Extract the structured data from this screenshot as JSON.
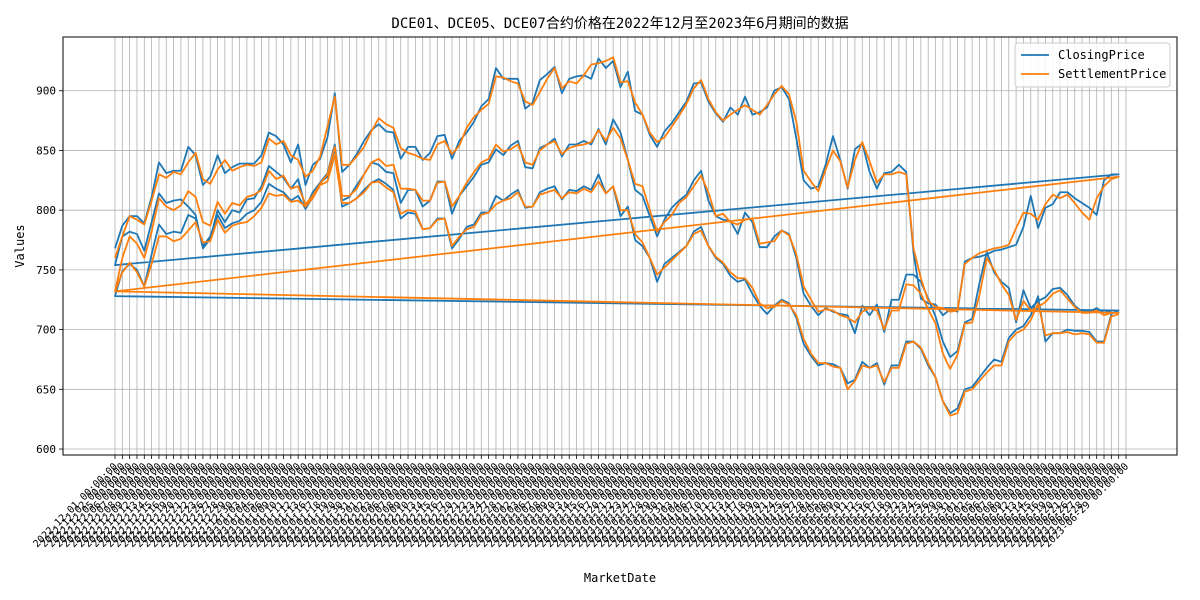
{
  "chart_data": {
    "type": "line",
    "title": "DCE01、DCE05、DCE07合约价格在2022年12月至2023年6月期间的数据",
    "xlabel": "MarketDate",
    "ylabel": "Values",
    "ylim": [
      595,
      945
    ],
    "yticks": [
      600,
      650,
      700,
      750,
      800,
      850,
      900
    ],
    "grid": true,
    "legend_position": "top-right",
    "dates": [
      "2022-12-01",
      "2022-12-02",
      "2022-12-05",
      "2022-12-06",
      "2022-12-07",
      "2022-12-08",
      "2022-12-09",
      "2022-12-12",
      "2022-12-13",
      "2022-12-14",
      "2022-12-15",
      "2022-12-16",
      "2022-12-19",
      "2022-12-20",
      "2022-12-21",
      "2022-12-22",
      "2022-12-23",
      "2022-12-26",
      "2022-12-27",
      "2022-12-28",
      "2022-12-29",
      "2022-12-30",
      "2023-01-03",
      "2023-01-04",
      "2023-01-05",
      "2023-01-06",
      "2023-01-09",
      "2023-01-10",
      "2023-01-11",
      "2023-01-12",
      "2023-01-13",
      "2023-01-16",
      "2023-01-17",
      "2023-01-18",
      "2023-01-19",
      "2023-01-20",
      "2023-01-30",
      "2023-01-31",
      "2023-02-01",
      "2023-02-02",
      "2023-02-03",
      "2023-02-06",
      "2023-02-07",
      "2023-02-08",
      "2023-02-09",
      "2023-02-10",
      "2023-02-13",
      "2023-02-14",
      "2023-02-15",
      "2023-02-16",
      "2023-02-17",
      "2023-02-20",
      "2023-02-21",
      "2023-02-22",
      "2023-02-23",
      "2023-02-24",
      "2023-02-27",
      "2023-02-28",
      "2023-03-01",
      "2023-03-02",
      "2023-03-03",
      "2023-03-06",
      "2023-03-07",
      "2023-03-08",
      "2023-03-09",
      "2023-03-10",
      "2023-03-13",
      "2023-03-14",
      "2023-03-15",
      "2023-03-16",
      "2023-03-17",
      "2023-03-20",
      "2023-03-21",
      "2023-03-22",
      "2023-03-23",
      "2023-03-24",
      "2023-03-27",
      "2023-03-28",
      "2023-03-29",
      "2023-03-30",
      "2023-03-31",
      "2023-04-03",
      "2023-04-04",
      "2023-04-06",
      "2023-04-07",
      "2023-04-10",
      "2023-04-11",
      "2023-04-12",
      "2023-04-13",
      "2023-04-14",
      "2023-04-17",
      "2023-04-18",
      "2023-04-19",
      "2023-04-20",
      "2023-04-21",
      "2023-04-24",
      "2023-04-25",
      "2023-04-26",
      "2023-04-27",
      "2023-04-28",
      "2023-05-04",
      "2023-05-05",
      "2023-05-08",
      "2023-05-09",
      "2023-05-10",
      "2023-05-11",
      "2023-05-12",
      "2023-05-15",
      "2023-05-16",
      "2023-05-17",
      "2023-05-18",
      "2023-05-19",
      "2023-05-22",
      "2023-05-23",
      "2023-05-24",
      "2023-05-25",
      "2023-05-26",
      "2023-05-29",
      "2023-05-30",
      "2023-05-31",
      "2023-06-01",
      "2023-06-02",
      "2023-06-05",
      "2023-06-06",
      "2023-06-07",
      "2023-06-08",
      "2023-06-09",
      "2023-06-12",
      "2023-06-13",
      "2023-06-14",
      "2023-06-15",
      "2023-06-16",
      "2023-06-19",
      "2023-06-20",
      "2023-06-21",
      "2023-06-26",
      "2023-06-27",
      "2023-06-28",
      "2023-06-29"
    ],
    "x_tick_format": " 00:00:00",
    "series": [
      {
        "name": "ClosingPrice",
        "color": "#1f77b4",
        "groups": [
          [
            768,
            787,
            795,
            795,
            789,
            811,
            840,
            831,
            833,
            833,
            853,
            846,
            821,
            828,
            846,
            831,
            836,
            839,
            839,
            839,
            846,
            865,
            862,
            855,
            840,
            855,
            821,
            838,
            843,
            861,
            898,
            832,
            838,
            847,
            858,
            867,
            872,
            866,
            865,
            843,
            853,
            853,
            842,
            848,
            862,
            863,
            843,
            858,
            865,
            874,
            887,
            893,
            919,
            910,
            910,
            910,
            885,
            890,
            909,
            914,
            920,
            898,
            910,
            912,
            913,
            910,
            927,
            919,
            925,
            903,
            916,
            883,
            880,
            863,
            853,
            866,
            873,
            882,
            891,
            906,
            907,
            891,
            881,
            874,
            886,
            880,
            895,
            880,
            882,
            886,
            900,
            903,
            893,
            860,
            825,
            818,
            820,
            838,
            862,
            842,
            818,
            851,
            856,
            832,
            818,
            831,
            832,
            838,
            832,
            764,
            726,
            722,
            721,
            712,
            717,
            715,
            757,
            760,
            761,
            763,
            766,
            767,
            769,
            771,
            786,
            812,
            785,
            802,
            805,
            815,
            815,
            810,
            806,
            802,
            796,
            825,
            830,
            830
          ],
          [
            754,
            778,
            782,
            780,
            766,
            790,
            814,
            806,
            808,
            809,
            803,
            796,
            768,
            776,
            800,
            790,
            800,
            798,
            809,
            810,
            820,
            837,
            832,
            827,
            818,
            826,
            802,
            815,
            823,
            831,
            855,
            808,
            811,
            821,
            830,
            840,
            838,
            832,
            831,
            806,
            817,
            817,
            803,
            808,
            824,
            824,
            797,
            812,
            820,
            828,
            838,
            840,
            851,
            846,
            854,
            858,
            836,
            835,
            852,
            855,
            860,
            845,
            855,
            855,
            858,
            855,
            868,
            855,
            876,
            865,
            842,
            817,
            812,
            795,
            778,
            792,
            802,
            808,
            813,
            825,
            833,
            808,
            795,
            792,
            791,
            780,
            798,
            790,
            769,
            769,
            778,
            783,
            780,
            760,
            730,
            720,
            712,
            718,
            715,
            713,
            712,
            697,
            720,
            712,
            721,
            698,
            725,
            725,
            746,
            746,
            740,
            726,
            711,
            690,
            677,
            682,
            706,
            709,
            739,
            765,
            748,
            740,
            735,
            706,
            733,
            718,
            724,
            727,
            734,
            735,
            729,
            720,
            715,
            715,
            718,
            714,
            716,
            716
          ],
          [
            728,
            749,
            755,
            750,
            736,
            763,
            788,
            780,
            782,
            781,
            796,
            793,
            770,
            778,
            796,
            785,
            789,
            791,
            797,
            800,
            807,
            822,
            818,
            815,
            808,
            812,
            801,
            811,
            823,
            828,
            852,
            803,
            806,
            810,
            817,
            823,
            826,
            822,
            817,
            793,
            798,
            797,
            784,
            785,
            793,
            793,
            768,
            776,
            786,
            788,
            798,
            798,
            812,
            808,
            813,
            817,
            802,
            803,
            815,
            818,
            820,
            809,
            817,
            816,
            820,
            817,
            830,
            814,
            820,
            795,
            803,
            775,
            770,
            760,
            740,
            755,
            760,
            765,
            770,
            782,
            786,
            770,
            760,
            755,
            745,
            740,
            742,
            730,
            720,
            713,
            720,
            725,
            722,
            710,
            688,
            678,
            670,
            672,
            671,
            668,
            655,
            658,
            673,
            668,
            672,
            654,
            670,
            670,
            690,
            690,
            684,
            670,
            660,
            640,
            630,
            634,
            650,
            652,
            660,
            668,
            675,
            673,
            693,
            700,
            703,
            712,
            728,
            690,
            697,
            697,
            700,
            699,
            699,
            698,
            690,
            690,
            713,
            716
          ]
        ]
      },
      {
        "name": "SettlementPrice",
        "color": "#ff7f0e",
        "groups": [
          [
            760,
            778,
            795,
            792,
            788,
            808,
            830,
            827,
            832,
            830,
            840,
            848,
            826,
            822,
            834,
            842,
            833,
            836,
            838,
            837,
            840,
            860,
            855,
            858,
            846,
            842,
            828,
            833,
            845,
            870,
            895,
            838,
            838,
            845,
            853,
            866,
            877,
            872,
            869,
            852,
            848,
            846,
            843,
            842,
            855,
            858,
            847,
            854,
            869,
            878,
            884,
            889,
            912,
            911,
            908,
            906,
            891,
            888,
            899,
            910,
            919,
            902,
            908,
            906,
            913,
            922,
            923,
            925,
            928,
            907,
            908,
            890,
            880,
            865,
            857,
            861,
            870,
            879,
            889,
            902,
            909,
            893,
            882,
            875,
            880,
            884,
            888,
            884,
            880,
            888,
            897,
            904,
            897,
            874,
            833,
            824,
            816,
            834,
            850,
            841,
            819,
            842,
            857,
            841,
            823,
            830,
            830,
            832,
            830,
            768,
            743,
            724,
            719,
            718,
            715,
            716,
            755,
            760,
            764,
            766,
            768,
            769,
            771,
            785,
            798,
            797,
            792,
            805,
            813,
            810,
            813,
            806,
            798,
            792,
            810,
            820,
            826,
            828
          ],
          [
            732,
            760,
            778,
            772,
            760,
            782,
            810,
            803,
            800,
            804,
            816,
            811,
            790,
            787,
            807,
            797,
            806,
            804,
            811,
            813,
            817,
            833,
            826,
            829,
            818,
            820,
            805,
            812,
            822,
            830,
            853,
            812,
            812,
            818,
            830,
            840,
            843,
            837,
            838,
            818,
            818,
            817,
            808,
            808,
            823,
            824,
            803,
            812,
            823,
            832,
            840,
            843,
            855,
            849,
            851,
            855,
            840,
            838,
            850,
            855,
            858,
            847,
            852,
            854,
            855,
            857,
            867,
            858,
            869,
            860,
            842,
            822,
            820,
            800,
            782,
            790,
            796,
            806,
            811,
            820,
            829,
            815,
            795,
            797,
            790,
            788,
            792,
            793,
            772,
            773,
            774,
            783,
            779,
            763,
            736,
            725,
            715,
            717,
            716,
            712,
            710,
            706,
            715,
            718,
            716,
            700,
            716,
            716,
            738,
            737,
            730,
            717,
            705,
            680,
            667,
            679,
            705,
            706,
            729,
            760,
            750,
            738,
            729,
            708,
            724,
            716,
            719,
            723,
            730,
            733,
            726,
            719,
            714,
            714,
            716,
            712,
            714,
            714
          ],
          [
            732,
            748,
            756,
            748,
            736,
            755,
            778,
            778,
            774,
            776,
            783,
            790,
            773,
            774,
            792,
            781,
            787,
            789,
            790,
            795,
            802,
            814,
            812,
            813,
            807,
            808,
            803,
            810,
            821,
            824,
            846,
            806,
            806,
            810,
            815,
            823,
            824,
            819,
            815,
            797,
            800,
            799,
            784,
            785,
            792,
            793,
            770,
            778,
            784,
            786,
            796,
            798,
            805,
            808,
            810,
            815,
            803,
            803,
            813,
            815,
            817,
            810,
            815,
            814,
            818,
            815,
            824,
            814,
            820,
            800,
            800,
            780,
            773,
            760,
            746,
            752,
            758,
            764,
            770,
            780,
            783,
            770,
            761,
            756,
            748,
            743,
            743,
            735,
            722,
            718,
            719,
            724,
            721,
            712,
            692,
            680,
            672,
            672,
            669,
            668,
            650,
            657,
            670,
            668,
            670,
            656,
            668,
            668,
            688,
            690,
            685,
            672,
            660,
            640,
            628,
            630,
            648,
            650,
            657,
            664,
            670,
            670,
            690,
            697,
            700,
            708,
            722,
            695,
            697,
            697,
            698,
            696,
            697,
            696,
            689,
            689,
            711,
            713
          ]
        ]
      }
    ]
  }
}
